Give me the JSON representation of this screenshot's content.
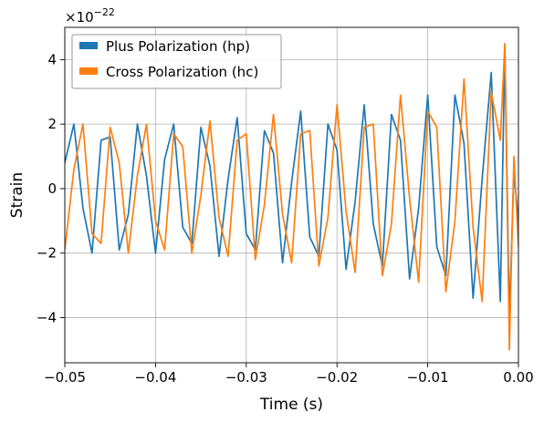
{
  "chart_data": {
    "type": "line",
    "title": "",
    "xlabel": "Time (s)",
    "ylabel": "Strain",
    "offset_label": "×10",
    "offset_exponent": "−22",
    "xlim": [
      -0.05,
      0.0
    ],
    "ylim": [
      -5.4,
      5.0
    ],
    "xticks": [
      -0.05,
      -0.04,
      -0.03,
      -0.02,
      -0.01,
      0.0
    ],
    "xtick_labels": [
      "−0.05",
      "−0.04",
      "−0.03",
      "−0.02",
      "−0.01",
      "0.00"
    ],
    "yticks": [
      -4,
      -2,
      0,
      2,
      4
    ],
    "ytick_labels": [
      "−4",
      "−2",
      "0",
      "2",
      "4"
    ],
    "grid": true,
    "legend_position": "top-left",
    "series": [
      {
        "name": "Plus Polarization (hp)",
        "color": "#1f77b4",
        "x": [
          -0.05,
          -0.049,
          -0.048,
          -0.047,
          -0.046,
          -0.045,
          -0.044,
          -0.043,
          -0.042,
          -0.041,
          -0.04,
          -0.039,
          -0.038,
          -0.037,
          -0.036,
          -0.035,
          -0.034,
          -0.033,
          -0.032,
          -0.031,
          -0.03,
          -0.029,
          -0.028,
          -0.027,
          -0.026,
          -0.025,
          -0.024,
          -0.023,
          -0.022,
          -0.021,
          -0.02,
          -0.019,
          -0.018,
          -0.017,
          -0.016,
          -0.015,
          -0.014,
          -0.013,
          -0.012,
          -0.011,
          -0.01,
          -0.009,
          -0.008,
          -0.007,
          -0.006,
          -0.005,
          -0.004,
          -0.003,
          -0.002,
          -0.0015,
          -0.001,
          -0.0005,
          0.0
        ],
        "values": [
          0.8,
          2.0,
          -0.6,
          -2.0,
          1.5,
          1.6,
          -1.9,
          -0.8,
          2.0,
          0.4,
          -2.0,
          0.9,
          2.0,
          -1.2,
          -1.7,
          1.9,
          0.7,
          -2.1,
          0.3,
          2.2,
          -1.4,
          -1.9,
          1.8,
          1.1,
          -2.3,
          0.2,
          2.4,
          -1.5,
          -2.1,
          2.0,
          1.2,
          -2.5,
          -0.4,
          2.6,
          -1.1,
          -2.4,
          2.3,
          1.5,
          -2.8,
          -0.6,
          2.9,
          -1.8,
          -2.7,
          2.9,
          1.4,
          -3.4,
          0.3,
          3.6,
          -3.5,
          4.4,
          -4.0,
          0.5,
          -1.0
        ]
      },
      {
        "name": "Cross Polarization (hc)",
        "color": "#ff7f0e",
        "x": [
          -0.05,
          -0.049,
          -0.048,
          -0.047,
          -0.046,
          -0.045,
          -0.044,
          -0.043,
          -0.042,
          -0.041,
          -0.04,
          -0.039,
          -0.038,
          -0.037,
          -0.036,
          -0.035,
          -0.034,
          -0.033,
          -0.032,
          -0.031,
          -0.03,
          -0.029,
          -0.028,
          -0.027,
          -0.026,
          -0.025,
          -0.024,
          -0.023,
          -0.022,
          -0.021,
          -0.02,
          -0.019,
          -0.018,
          -0.017,
          -0.016,
          -0.015,
          -0.014,
          -0.013,
          -0.012,
          -0.011,
          -0.01,
          -0.009,
          -0.008,
          -0.007,
          -0.006,
          -0.005,
          -0.004,
          -0.003,
          -0.002,
          -0.0015,
          -0.001,
          -0.0005,
          0.0
        ],
        "values": [
          -1.9,
          0.6,
          2.0,
          -1.4,
          -1.7,
          1.9,
          0.8,
          -2.0,
          0.4,
          2.0,
          -1.0,
          -1.9,
          1.7,
          1.3,
          -2.0,
          -0.2,
          2.1,
          -0.9,
          -2.1,
          1.5,
          1.7,
          -2.2,
          -0.5,
          2.3,
          -0.8,
          -2.3,
          1.7,
          1.8,
          -2.4,
          -0.9,
          2.6,
          -0.7,
          -2.6,
          1.9,
          2.0,
          -2.7,
          -1.1,
          2.9,
          -0.3,
          -2.9,
          2.4,
          1.9,
          -3.2,
          -1.0,
          3.4,
          -1.2,
          -3.5,
          3.0,
          1.5,
          4.5,
          -5.0,
          1.0,
          -1.8
        ]
      }
    ]
  }
}
